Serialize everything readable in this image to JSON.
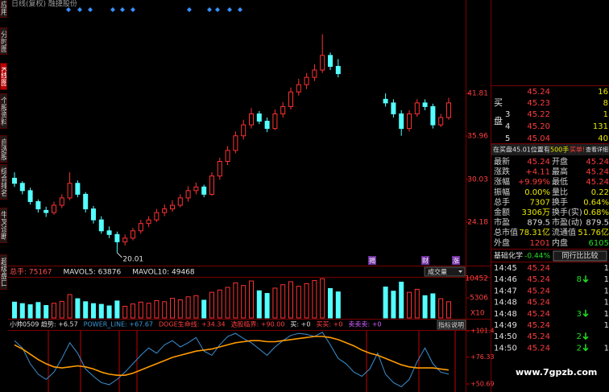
{
  "title": "日线(复权) 融捷股份",
  "tabs": [
    "应用",
    "分时图",
    "K线图",
    "个股资料",
    "自选股",
    "综合排名",
    "牛叉诊断",
    "超级盘口"
  ],
  "selected_tab": 2,
  "price": {
    "ylim": [
      18.24,
      53.7
    ],
    "yticks": [
      41.81,
      35.96,
      30.03,
      24.18
    ],
    "low_label": 20.01,
    "up_color": "#ff3232",
    "down_color": "#54ffff",
    "candles": [
      [
        30.2,
        31.0,
        29.0,
        29.5
      ],
      [
        29.5,
        29.8,
        28.0,
        28.5
      ],
      [
        28.5,
        28.9,
        26.6,
        27.0
      ],
      [
        27.0,
        27.3,
        25.5,
        26.0
      ],
      [
        25.8,
        26.3,
        24.9,
        25.5
      ],
      [
        25.5,
        27.0,
        25.2,
        26.5
      ],
      [
        26.5,
        28.0,
        26.1,
        27.5
      ],
      [
        27.5,
        31.0,
        27.2,
        29.5
      ],
      [
        29.5,
        29.9,
        27.6,
        28.0
      ],
      [
        28.0,
        28.3,
        25.5,
        26.0
      ],
      [
        26.0,
        26.4,
        24.0,
        24.5
      ],
      [
        24.5,
        25.0,
        22.6,
        23.0
      ],
      [
        23.0,
        23.6,
        22.0,
        22.5
      ],
      [
        22.5,
        22.9,
        20.01,
        21.5
      ],
      [
        21.5,
        22.5,
        21.0,
        22.0
      ],
      [
        22.0,
        23.4,
        21.7,
        23.0
      ],
      [
        23.0,
        24.5,
        22.6,
        24.0
      ],
      [
        24.0,
        25.0,
        23.5,
        24.5
      ],
      [
        24.5,
        26.0,
        24.2,
        25.5
      ],
      [
        25.5,
        26.6,
        25.0,
        26.0
      ],
      [
        26.0,
        27.2,
        25.6,
        26.5
      ],
      [
        26.5,
        28.0,
        26.2,
        27.5
      ],
      [
        27.5,
        29.1,
        27.0,
        28.5
      ],
      [
        28.5,
        29.6,
        28.0,
        29.0
      ],
      [
        29.0,
        29.3,
        27.6,
        28.0
      ],
      [
        28.0,
        31.0,
        27.8,
        30.5
      ],
      [
        30.5,
        33.0,
        30.0,
        32.5
      ],
      [
        32.5,
        34.6,
        32.0,
        34.0
      ],
      [
        34.0,
        36.6,
        33.6,
        36.0
      ],
      [
        36.0,
        38.2,
        35.5,
        37.5
      ],
      [
        37.5,
        39.8,
        37.0,
        39.0
      ],
      [
        39.0,
        39.4,
        37.6,
        38.0
      ],
      [
        38.0,
        38.5,
        36.5,
        37.0
      ],
      [
        37.0,
        39.6,
        36.8,
        39.0
      ],
      [
        39.0,
        40.6,
        38.5,
        40.0
      ],
      [
        40.0,
        42.6,
        39.6,
        42.0
      ],
      [
        42.0,
        43.8,
        41.5,
        43.0
      ],
      [
        43.0,
        44.6,
        42.4,
        44.0
      ],
      [
        44.0,
        45.8,
        43.5,
        45.0
      ],
      [
        45.0,
        49.9,
        44.6,
        47.0
      ],
      [
        47.0,
        47.4,
        45.0,
        45.5
      ],
      [
        45.5,
        46.5,
        44.0,
        44.5
      ],
      null,
      null,
      null,
      null,
      null,
      [
        41.0,
        41.8,
        40.0,
        40.5
      ],
      [
        40.5,
        41.0,
        38.5,
        39.0
      ],
      [
        39.0,
        39.5,
        36.0,
        37.0
      ],
      [
        37.0,
        39.5,
        36.6,
        39.0
      ],
      [
        39.0,
        41.0,
        38.6,
        40.5
      ],
      [
        40.5,
        41.0,
        39.5,
        40.0
      ],
      [
        40.0,
        40.4,
        37.0,
        37.5
      ],
      [
        37.5,
        39.0,
        37.2,
        38.5
      ],
      [
        38.5,
        41.2,
        38.2,
        40.5
      ]
    ]
  },
  "events": [
    "揭",
    "财",
    "涨"
  ],
  "volume": {
    "header": [
      "总手: 75167",
      "MAVOL5: 63876",
      "MAVOL10: 49468"
    ],
    "selector": "成交量",
    "unit": "X10",
    "ylim": [
      0,
      10665
    ],
    "yticks": [
      10452,
      5306
    ],
    "values": [
      4200,
      3800,
      3500,
      4100,
      3300,
      3900,
      4400,
      6200,
      5100,
      4300,
      3800,
      3600,
      3200,
      4500,
      3100,
      3700,
      4200,
      3900,
      4600,
      4300,
      5200,
      4800,
      5600,
      5900,
      4700,
      6800,
      7400,
      8100,
      9300,
      8600,
      9800,
      7200,
      6500,
      7900,
      8800,
      9600,
      8400,
      9100,
      9900,
      10400,
      7800,
      6900,
      null,
      null,
      null,
      null,
      null,
      8200,
      7100,
      9500,
      6800,
      7600,
      5900,
      6400,
      5100,
      4300
    ]
  },
  "indicator": {
    "header": [
      {
        "text": "小帅0509 趋势: +6.57",
        "color": "#e0e0e0"
      },
      {
        "text": "POWER_LINE: +67.67",
        "color": "#3a9ad8"
      },
      {
        "text": "DOGE生命线: +34.34",
        "color": "#ff4040"
      },
      {
        "text": "选股临界: +90.00",
        "color": "#ff4040"
      },
      {
        "text": "买: +0",
        "color": "#e0e0e0"
      },
      {
        "text": "买买: +0",
        "color": "#ff4040"
      },
      {
        "text": "卖卖卖: +0",
        "color": "#d060ff"
      }
    ],
    "button": "指标说明",
    "ylim": [
      43.0,
      106.0
    ],
    "yticks": [
      {
        "value": 101.4,
        "label": "+101.4"
      },
      {
        "value": 76.33,
        "label": "+76.33"
      },
      {
        "value": 50.69,
        "label": "+50.69"
      }
    ],
    "series": [
      {
        "color": "#3a8fd0",
        "values": [
          92,
          85,
          70,
          60,
          55,
          62,
          75,
          90,
          80,
          65,
          58,
          52,
          50,
          55,
          62,
          70,
          78,
          85,
          80,
          88,
          92,
          86,
          90,
          95,
          82,
          78,
          88,
          96,
          99,
          94,
          90,
          84,
          78,
          86,
          92,
          97,
          99,
          98,
          96,
          100,
          88,
          75,
          70,
          62,
          58,
          65,
          80,
          60,
          52,
          48,
          55,
          72,
          85,
          70,
          62,
          60
        ]
      },
      {
        "color": "#ff9a00",
        "values": [
          88,
          84,
          79,
          74,
          70,
          67,
          66,
          67,
          68,
          67,
          65,
          62,
          60,
          59,
          59,
          61,
          64,
          67,
          70,
          73,
          76,
          78,
          80,
          82,
          83,
          84,
          86,
          88,
          90,
          91,
          92,
          92,
          91,
          91,
          92,
          93,
          94,
          95,
          96,
          96,
          95,
          93,
          90,
          87,
          83,
          80,
          78,
          75,
          72,
          69,
          67,
          66,
          66,
          66,
          65,
          64
        ]
      }
    ]
  },
  "quote": {
    "side": [
      "买",
      "盘"
    ],
    "book": [
      {
        "n": null,
        "price": "45.24",
        "vol": "16"
      },
      {
        "n": null,
        "price": "45.23",
        "vol": "8"
      },
      {
        "n": "3",
        "price": "45.22",
        "vol": "1"
      },
      {
        "n": "4",
        "price": "45.20",
        "vol": "131"
      },
      {
        "n": "5",
        "price": "45.04",
        "vol": "40"
      }
    ],
    "alert": {
      "text": "在买盘45.01位置有",
      "qty": "500手",
      "tag": "买单!",
      "link": "查看详细"
    },
    "stats": [
      {
        "l1": "最新",
        "v1": "45.24",
        "c1": "#ff3c3c",
        "l2": "开盘",
        "v2": "45.24",
        "c2": "#ff3c3c"
      },
      {
        "l1": "涨跌",
        "v1": "+4.11",
        "c1": "#ff3c3c",
        "l2": "最高",
        "v2": "45.24",
        "c2": "#ff3c3c"
      },
      {
        "l1": "涨幅",
        "v1": "+9.99%",
        "c1": "#ff3c3c",
        "l2": "最低",
        "v2": "45.24",
        "c2": "#ff3c3c"
      },
      {
        "l1": "振幅",
        "v1": "0.00%",
        "c1": "#e8e800",
        "l2": "量比",
        "v2": "0.22",
        "c2": "#e8e800"
      },
      {
        "l1": "总手",
        "v1": "7307",
        "c1": "#e8e800",
        "l2": "换手",
        "v2": "0.64%",
        "c2": "#e8e800"
      },
      {
        "l1": "金额",
        "v1": "3306万",
        "c1": "#e8e800",
        "l2": "换手(实)",
        "v2": "0.68%",
        "c2": "#e8e800"
      },
      {
        "l1": "市盈",
        "v1": "879.5",
        "c1": "#e0e0e0",
        "l2": "市盈(动)",
        "v2": "879.5",
        "c2": "#e0e0e0"
      },
      {
        "l1": "总市值",
        "v1": "78.31亿",
        "c1": "#e8e800",
        "l2": "流通值",
        "v2": "51.76亿",
        "c2": "#e8e800"
      },
      {
        "l1": "外盘",
        "v1": "1201",
        "c1": "#ff3c3c",
        "l2": "内盘",
        "v2": "6105",
        "c2": "#20e020"
      }
    ],
    "sector": {
      "name": "基础化学",
      "change": "-0.44%",
      "button": "同行比比较"
    }
  },
  "trades": [
    {
      "time": "14:45",
      "price": "45.24",
      "vol": null,
      "arrow": null,
      "tail": "1"
    },
    {
      "time": "14:46",
      "price": "45.24",
      "vol": "8",
      "arrow": "down",
      "tail": "1"
    },
    {
      "time": "14:47",
      "price": "45.24",
      "vol": null,
      "arrow": null,
      "tail": "1"
    },
    {
      "time": "14:48",
      "price": "45.24",
      "vol": null,
      "arrow": null,
      "tail": "1"
    },
    {
      "time": "14:48",
      "price": "45.24",
      "vol": "3",
      "arrow": "down",
      "tail": "1"
    },
    {
      "time": "14:49",
      "price": "45.24",
      "vol": null,
      "arrow": null,
      "tail": "1"
    },
    {
      "time": "14:50",
      "price": "45.24",
      "vol": "2",
      "arrow": "down",
      "tail": null
    },
    {
      "time": "14:50",
      "price": "45.24",
      "vol": "2",
      "arrow": "down",
      "tail": "1"
    }
  ],
  "watermark": "www.7gpzb.com"
}
